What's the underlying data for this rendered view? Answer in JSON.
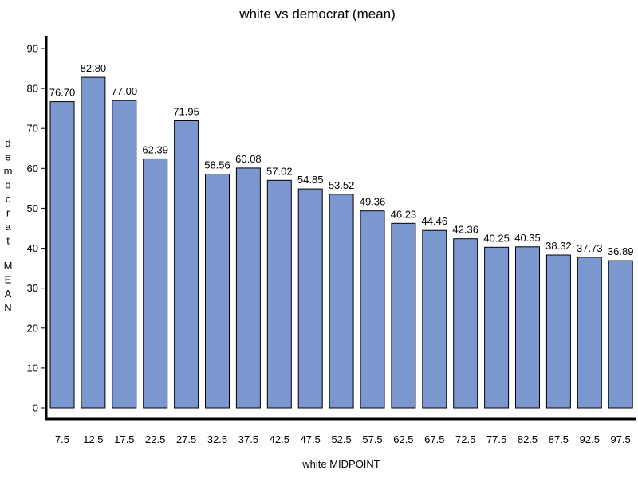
{
  "chart_data": {
    "type": "bar",
    "title": "white vs democrat (mean)",
    "xlabel": "white MIDPOINT",
    "ylabel": "democrat MEAN",
    "categories": [
      "7.5",
      "12.5",
      "17.5",
      "22.5",
      "27.5",
      "32.5",
      "37.5",
      "42.5",
      "47.5",
      "52.5",
      "57.5",
      "62.5",
      "67.5",
      "72.5",
      "77.5",
      "82.5",
      "87.5",
      "92.5",
      "97.5"
    ],
    "values": [
      76.7,
      82.8,
      77.0,
      62.39,
      71.95,
      58.56,
      60.08,
      57.02,
      54.85,
      53.52,
      49.36,
      46.23,
      44.46,
      42.36,
      40.25,
      40.35,
      38.32,
      37.73,
      36.89
    ],
    "data_labels": [
      "76.70",
      "82.80",
      "77.00",
      "62.39",
      "71.95",
      "58.56",
      "60.08",
      "57.02",
      "54.85",
      "53.52",
      "49.36",
      "46.23",
      "44.46",
      "42.36",
      "40.25",
      "40.35",
      "38.32",
      "37.73",
      "36.89"
    ],
    "yticks": [
      "0",
      "10",
      "20",
      "30",
      "40",
      "50",
      "60",
      "70",
      "80",
      "90"
    ],
    "ylim": [
      0,
      90
    ],
    "grid": false,
    "bar_color": "#7b97cf",
    "bar_edge_color": "#000000"
  }
}
